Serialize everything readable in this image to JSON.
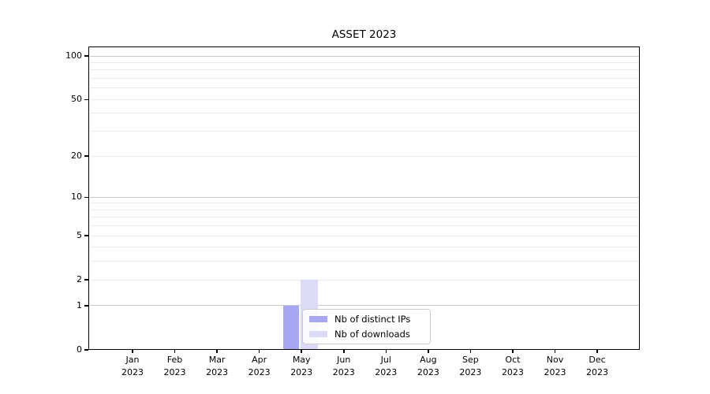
{
  "chart_data": {
    "type": "bar",
    "title": "ASSET 2023",
    "categories": [
      "Jan 2023",
      "Feb 2023",
      "Mar 2023",
      "Apr 2023",
      "May 2023",
      "Jun 2023",
      "Jul 2023",
      "Aug 2023",
      "Sep 2023",
      "Oct 2023",
      "Nov 2023",
      "Dec 2023"
    ],
    "series": [
      {
        "name": "Nb of distinct IPs",
        "color": "#a7a7f3",
        "values": [
          0,
          0,
          0,
          0,
          1,
          0,
          0,
          0,
          0,
          0,
          0,
          0
        ]
      },
      {
        "name": "Nb of downloads",
        "color": "#dbdbf8",
        "values": [
          0,
          0,
          0,
          0,
          2,
          0,
          0,
          0,
          0,
          0,
          0,
          0
        ]
      }
    ],
    "yticks": [
      0,
      1,
      2,
      5,
      10,
      20,
      50,
      100
    ],
    "yscale": "log1p",
    "ylim": [
      0,
      115
    ],
    "xlabel": "",
    "ylabel": "",
    "grid": "horizontal",
    "gridline_decade_color": "#c8c8c8",
    "gridline_minor_color": "#ececec",
    "legend_position": "inside-lower-middle"
  }
}
